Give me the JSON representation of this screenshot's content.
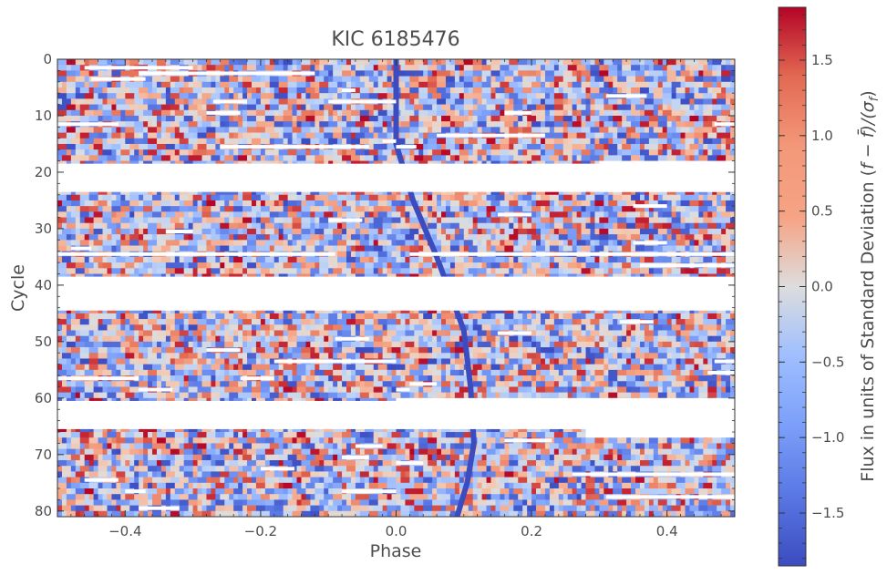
{
  "chart_data": {
    "type": "heatmap",
    "title": "KIC 6185476",
    "xlabel": "Phase",
    "ylabel": "Cycle",
    "xlim": [
      -0.5,
      0.5
    ],
    "ylim": [
      81,
      0
    ],
    "x_ticks": [
      -0.4,
      -0.2,
      0.0,
      0.2,
      0.4
    ],
    "x_tick_labels": [
      "−0.4",
      "−0.2",
      "0.0",
      "0.2",
      "0.4"
    ],
    "y_ticks": [
      0,
      10,
      20,
      30,
      40,
      50,
      60,
      70,
      80
    ],
    "y_tick_labels": [
      "0",
      "10",
      "20",
      "30",
      "40",
      "50",
      "60",
      "70",
      "80"
    ],
    "colorbar": {
      "label": "Flux in units of Standard Deviation (f − f̄)/(σ_f)",
      "label_main": "Flux in units of Standard Deviation (",
      "label_math": "f − f̄)/(σ",
      "label_sub": "f",
      "label_end": ")",
      "colormap": "coolwarm",
      "range": [
        -1.85,
        1.85
      ],
      "ticks": [
        -1.5,
        -1.0,
        -0.5,
        0.0,
        0.5,
        1.0,
        1.5
      ],
      "tick_labels": [
        "−1.5",
        "−1.0",
        "−0.5",
        "0.0",
        "0.5",
        "1.0",
        "1.5"
      ]
    },
    "grid": false,
    "transit_track": [
      {
        "cycle": 0,
        "phase": 0.0
      },
      {
        "cycle": 15,
        "phase": 0.0
      },
      {
        "cycle": 25,
        "phase": 0.025
      },
      {
        "cycle": 35,
        "phase": 0.06
      },
      {
        "cycle": 48,
        "phase": 0.1
      },
      {
        "cycle": 58,
        "phase": 0.11
      },
      {
        "cycle": 68,
        "phase": 0.115
      },
      {
        "cycle": 75,
        "phase": 0.105
      },
      {
        "cycle": 81,
        "phase": 0.09
      }
    ],
    "missing_cycles": [
      {
        "cycle_start": 18.5,
        "cycle_end": 23.5,
        "phase_start": -0.5,
        "phase_end": 0.5
      },
      {
        "cycle_start": 38.5,
        "cycle_end": 44.5,
        "phase_start": -0.5,
        "phase_end": 0.5
      },
      {
        "cycle_start": 60.5,
        "cycle_end": 65.5,
        "phase_start": -0.5,
        "phase_end": 0.5
      },
      {
        "cycle_start": 18.0,
        "cycle_end": 23.5,
        "phase_start": 0.3,
        "phase_end": 0.5
      },
      {
        "cycle_start": 60.0,
        "cycle_end": 61.0,
        "phase_start": 0.0,
        "phase_end": 0.5
      },
      {
        "cycle_start": 64.5,
        "cycle_end": 67.0,
        "phase_start": 0.28,
        "phase_end": 0.5
      }
    ]
  }
}
